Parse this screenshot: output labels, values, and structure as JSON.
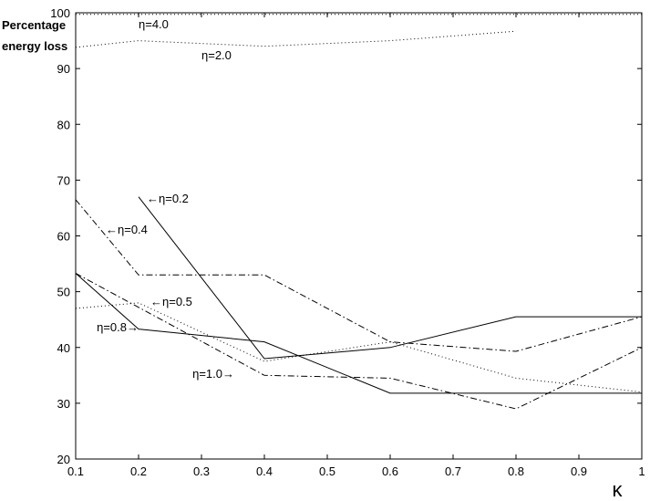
{
  "chart_data": {
    "type": "line",
    "title": "",
    "xlabel": "κ",
    "ylabel_lines": [
      "Percentage",
      "energy loss"
    ],
    "xlim": [
      0.1,
      1.0
    ],
    "ylim": [
      20,
      100
    ],
    "grid": false,
    "xticks": [
      "0.1",
      "0.2",
      "0.3",
      "0.4",
      "0.5",
      "0.6",
      "0.7",
      "0.8",
      "0.9",
      "1"
    ],
    "yticks": [
      "20",
      "30",
      "40",
      "50",
      "60",
      "70",
      "80",
      "90",
      "100"
    ],
    "series": [
      {
        "name": "η=0.2",
        "style": "solid",
        "points": [
          [
            0.2,
            67
          ],
          [
            0.4,
            38
          ],
          [
            0.6,
            40
          ],
          [
            0.8,
            45.5
          ],
          [
            1.0,
            45.5
          ]
        ]
      },
      {
        "name": "η=0.4",
        "style": "dashdot",
        "points": [
          [
            0.1,
            66.5
          ],
          [
            0.2,
            53
          ],
          [
            0.4,
            53
          ],
          [
            0.6,
            41
          ],
          [
            0.8,
            39.3
          ],
          [
            1.0,
            45.5
          ]
        ]
      },
      {
        "name": "η=0.5",
        "style": "dotted",
        "points": [
          [
            0.1,
            47
          ],
          [
            0.2,
            48
          ],
          [
            0.4,
            37.5
          ],
          [
            0.6,
            41
          ],
          [
            0.8,
            34.5
          ],
          [
            1.0,
            32
          ]
        ]
      },
      {
        "name": "η=0.8",
        "style": "solid",
        "points": [
          [
            0.1,
            53.3
          ],
          [
            0.2,
            43.3
          ],
          [
            0.4,
            41
          ],
          [
            0.6,
            31.8
          ],
          [
            0.8,
            31.8
          ],
          [
            1.0,
            31.8
          ]
        ]
      },
      {
        "name": "η=1.0",
        "style": "dashdot",
        "points": [
          [
            0.1,
            53.3
          ],
          [
            0.4,
            35
          ],
          [
            0.6,
            34.5
          ],
          [
            0.8,
            29
          ],
          [
            1.0,
            40
          ]
        ]
      },
      {
        "name": "η=2.0",
        "style": "dotted",
        "points": [
          [
            0.1,
            93.8
          ],
          [
            0.2,
            95
          ],
          [
            0.4,
            94
          ],
          [
            0.6,
            95
          ],
          [
            0.8,
            96.7
          ]
        ]
      },
      {
        "name": "η=4.0",
        "style": "dotted",
        "points": [
          [
            0.1,
            99.7
          ],
          [
            1.0,
            99.7
          ]
        ]
      }
    ],
    "annotations": [
      {
        "text": "η=4.0",
        "arrow": "none"
      },
      {
        "text": "η=2.0",
        "arrow": "none"
      },
      {
        "text": "←η=0.2",
        "arrow": "left"
      },
      {
        "text": "←η=0.4",
        "arrow": "left"
      },
      {
        "text": "←η=0.5",
        "arrow": "left"
      },
      {
        "text": "η=0.8→",
        "arrow": "right"
      },
      {
        "text": "η=1.0→",
        "arrow": "right"
      }
    ]
  }
}
